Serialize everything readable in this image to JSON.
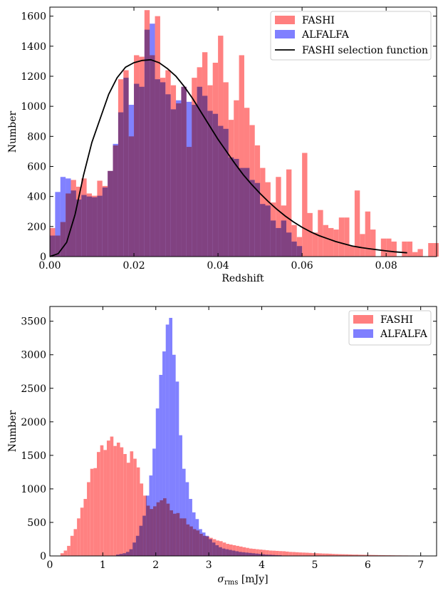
{
  "chart_data": [
    {
      "type": "histogram",
      "xlabel": "Redshift",
      "ylabel": "Number",
      "xlim": [
        0.0,
        0.092
      ],
      "ylim": [
        0,
        1660
      ],
      "xticks": [
        {
          "value": 0.0,
          "label": "0.00"
        },
        {
          "value": 0.02,
          "label": "0.02"
        },
        {
          "value": 0.04,
          "label": "0.04"
        },
        {
          "value": 0.06,
          "label": "0.06"
        },
        {
          "value": 0.08,
          "label": "0.08"
        }
      ],
      "yticks": [
        {
          "value": 0,
          "label": "0"
        },
        {
          "value": 200,
          "label": "200"
        },
        {
          "value": 400,
          "label": "400"
        },
        {
          "value": 600,
          "label": "600"
        },
        {
          "value": 800,
          "label": "800"
        },
        {
          "value": 1000,
          "label": "1000"
        },
        {
          "value": 1200,
          "label": "1200"
        },
        {
          "value": 1400,
          "label": "1400"
        },
        {
          "value": 1600,
          "label": "1600"
        }
      ],
      "legend_position": "top-right",
      "series": [
        {
          "name": "FASHI",
          "color": "#ff7f7f",
          "bin_start": 0.0,
          "bin_width": 0.00125,
          "values": [
            190,
            140,
            230,
            420,
            510,
            465,
            520,
            420,
            405,
            505,
            470,
            570,
            740,
            1180,
            1240,
            800,
            1340,
            1330,
            1640,
            1340,
            1600,
            1190,
            1240,
            1140,
            1020,
            1130,
            730,
            1190,
            1260,
            1360,
            1140,
            1290,
            1470,
            1160,
            910,
            1040,
            1340,
            990,
            875,
            740,
            590,
            495,
            360,
            530,
            340,
            580,
            210,
            130,
            690,
            290,
            160,
            310,
            210,
            190,
            180,
            260,
            260,
            70,
            440,
            150,
            300,
            180,
            0,
            120,
            120,
            100,
            0,
            100,
            100,
            30,
            50,
            0,
            90,
            90,
            0
          ]
        },
        {
          "name": "ALFALFA",
          "color": "#7f7fff",
          "bin_start": 0.0,
          "bin_width": 0.00125,
          "values": [
            140,
            430,
            530,
            520,
            440,
            380,
            410,
            400,
            395,
            405,
            460,
            570,
            750,
            960,
            1190,
            1010,
            1150,
            1130,
            1510,
            1550,
            1180,
            1160,
            1080,
            980,
            1040,
            1130,
            1030,
            1010,
            1130,
            1070,
            970,
            950,
            870,
            850,
            660,
            650,
            590,
            590,
            510,
            490,
            350,
            340,
            240,
            190,
            240,
            160,
            100,
            70,
            0,
            0
          ]
        }
      ],
      "curve": {
        "name": "FASHI selection function",
        "color": "#000000",
        "x": [
          0.0,
          0.002,
          0.004,
          0.006,
          0.008,
          0.01,
          0.012,
          0.014,
          0.016,
          0.018,
          0.02,
          0.022,
          0.024,
          0.026,
          0.028,
          0.03,
          0.032,
          0.034,
          0.036,
          0.038,
          0.04,
          0.042,
          0.044,
          0.046,
          0.048,
          0.05,
          0.052,
          0.054,
          0.056,
          0.058,
          0.06,
          0.062,
          0.064,
          0.066,
          0.068,
          0.07,
          0.072,
          0.074,
          0.076,
          0.078,
          0.08,
          0.082,
          0.085
        ],
        "y": [
          0,
          20,
          95,
          280,
          540,
          760,
          920,
          1080,
          1190,
          1260,
          1290,
          1305,
          1310,
          1290,
          1250,
          1200,
          1130,
          1050,
          960,
          870,
          780,
          700,
          620,
          545,
          480,
          420,
          365,
          315,
          270,
          230,
          195,
          165,
          140,
          120,
          100,
          85,
          70,
          60,
          52,
          45,
          38,
          32,
          25
        ]
      }
    },
    {
      "type": "histogram",
      "xlabel_prefix": "σ",
      "xlabel_sub": "rms",
      "xlabel_suffix": " [mJy]",
      "ylabel": "Number",
      "xlim": [
        0.0,
        7.3
      ],
      "ylim": [
        0,
        3720
      ],
      "xticks": [
        {
          "value": 0,
          "label": "0"
        },
        {
          "value": 1,
          "label": "1"
        },
        {
          "value": 2,
          "label": "2"
        },
        {
          "value": 3,
          "label": "3"
        },
        {
          "value": 4,
          "label": "4"
        },
        {
          "value": 5,
          "label": "5"
        },
        {
          "value": 6,
          "label": "6"
        },
        {
          "value": 7,
          "label": "7"
        }
      ],
      "yticks": [
        {
          "value": 0,
          "label": "0"
        },
        {
          "value": 500,
          "label": "500"
        },
        {
          "value": 1000,
          "label": "1000"
        },
        {
          "value": 1500,
          "label": "1500"
        },
        {
          "value": 2000,
          "label": "2000"
        },
        {
          "value": 2500,
          "label": "2500"
        },
        {
          "value": 3000,
          "label": "3000"
        },
        {
          "value": 3500,
          "label": "3500"
        }
      ],
      "legend_position": "top-right",
      "series": [
        {
          "name": "FASHI",
          "color": "#ff7f7f",
          "bin_start": 0.2,
          "bin_width": 0.0625,
          "values": [
            40,
            80,
            150,
            300,
            400,
            560,
            720,
            850,
            1100,
            1300,
            1310,
            1550,
            1650,
            1580,
            1720,
            1780,
            1640,
            1690,
            1620,
            1520,
            1390,
            1560,
            1450,
            1320,
            1080,
            900,
            750,
            700,
            740,
            800,
            830,
            860,
            780,
            680,
            630,
            640,
            560,
            560,
            470,
            440,
            400,
            380,
            330,
            300,
            290,
            270,
            250,
            230,
            220,
            200,
            180,
            170,
            160,
            150,
            140,
            130,
            120,
            110,
            105,
            100,
            95,
            90,
            85,
            80,
            78,
            75,
            72,
            70,
            65,
            60,
            58,
            55,
            52,
            50,
            48,
            45,
            42,
            40,
            38,
            36,
            35,
            33,
            30,
            28,
            26,
            25,
            24,
            22,
            20,
            20,
            18,
            17,
            16,
            15,
            14,
            13,
            12,
            11,
            10,
            10,
            9,
            8,
            8,
            7,
            7,
            6,
            6,
            5
          ]
        },
        {
          "name": "ALFALFA",
          "color": "#7f7fff",
          "bin_start": 1.25,
          "bin_width": 0.0625,
          "values": [
            20,
            30,
            40,
            60,
            100,
            200,
            300,
            450,
            600,
            900,
            1200,
            1600,
            2200,
            2700,
            3050,
            3450,
            3550,
            3000,
            2600,
            1800,
            1300,
            1100,
            850,
            650,
            550,
            400,
            350,
            300,
            250,
            200,
            160,
            130,
            110,
            100,
            90,
            80,
            70,
            60,
            55,
            50,
            45,
            40,
            35,
            30,
            25,
            20,
            18,
            15,
            12,
            10
          ]
        }
      ]
    }
  ]
}
